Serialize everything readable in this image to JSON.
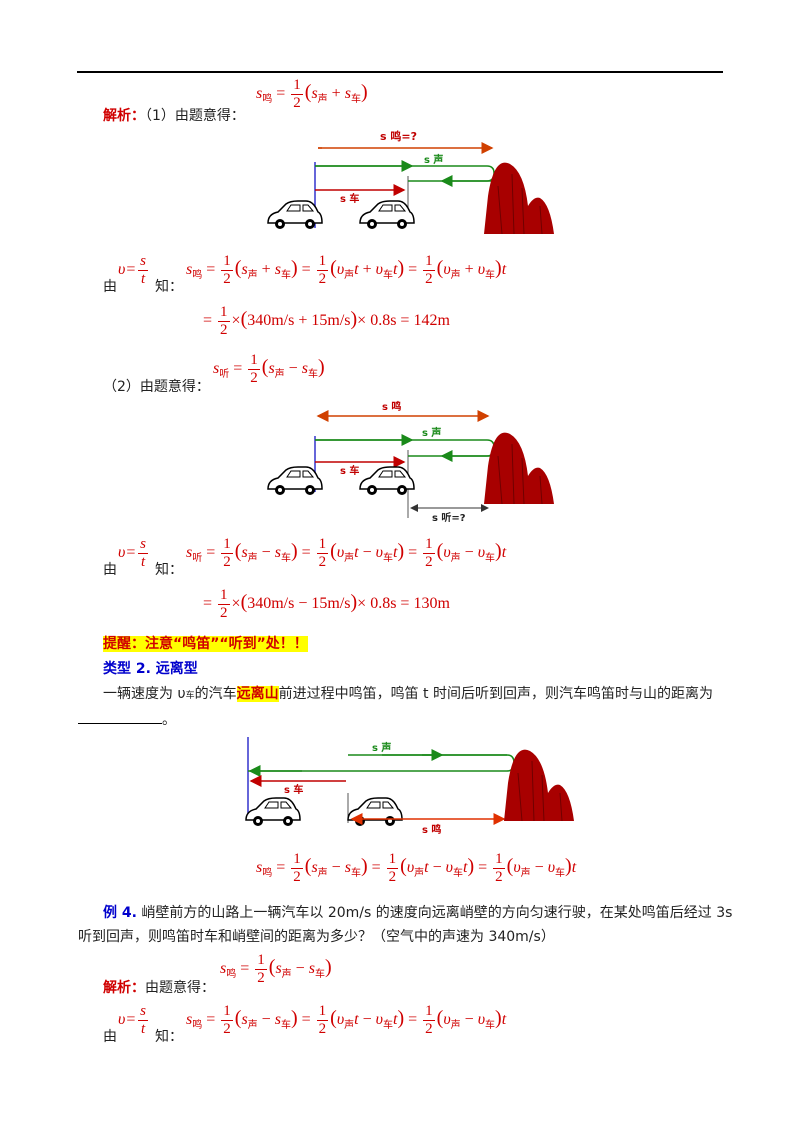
{
  "header_rule": true,
  "sol1": {
    "label": "解析：",
    "part": "（1）由题意得：",
    "eq_lhs": "s",
    "eq_lhs_sub": "鸣",
    "eq_rhs": "(s",
    "eq_rhs_sub1": "声",
    "eq_plus": "+ s",
    "eq_rhs_sub2": "车",
    "eq_close": ")"
  },
  "fig1": {
    "s_ming": "s 鸣=?",
    "s_sheng": "s 声",
    "s_che": "s 车"
  },
  "deriv1": {
    "intro": "由",
    "know": "知：",
    "v_eq": "υ=",
    "frac_num": "s",
    "frac_den": "t",
    "line1": "s鸣 = ½(s声 + s车) = ½(υ声t + υ车t) = ½(υ声 + υ车)t",
    "line2": "= ½ × (340m/s + 15m/s) × 0.8s = 142m"
  },
  "sol2": {
    "part": "（2）由题意得：",
    "eq": "s听 = ½(s声 − s车)"
  },
  "fig2": {
    "s_ming": "s 鸣",
    "s_sheng": "s 声",
    "s_che": "s 车",
    "s_ting": "s 听=?"
  },
  "deriv2": {
    "intro": "由",
    "know": "知：",
    "v_eq": "υ=",
    "frac_num": "s",
    "frac_den": "t",
    "line1": "s听 = ½(s声 − s车) = ½(υ声t − υ车t) = ½(υ声 − υ车)t",
    "line2": "= ½ × (340m/s − 15m/s) × 0.8s = 130m"
  },
  "tip": "提醒：注意“鸣笛”“听到”处！！",
  "type2": {
    "heading": "类型 2. 远离型",
    "text_before": "一辆速度为 υ",
    "text_sub": "车",
    "text_mid": "的汽车",
    "highlight": "远离山",
    "text_after": "前进过程中鸣笛，鸣笛 t 时间后听到回声，则汽车鸣笛时与山的距离为",
    "blank_end": "。"
  },
  "fig3": {
    "s_sheng": "s 声",
    "s_che": "s 车",
    "s_ming": "s 鸣"
  },
  "type2_eq": "s鸣 = ½(s声 − s车) = ½(υ声t − υ车t) = ½(υ声 − υ车)t",
  "ex4": {
    "label": "例 4.",
    "text1": "峭壁前方的山路上一辆汽车以 20m/s 的速度向远离峭壁的方向匀速行驶，在某处鸣笛后经过 3s",
    "text2": "听到回声，则鸣笛时车和峭壁间的距离为多少？（空气中的声速为 340m/s）"
  },
  "sol4": {
    "label": "解析：",
    "part": "由题意得：",
    "eq": "s鸣 = ½(s声 − s车)",
    "intro": "由",
    "know": "知：",
    "v_eq": "υ=",
    "frac_num": "s",
    "frac_den": "t",
    "line1": "s鸣 = ½(s声 − s车) = ½(υ声t − υ车t) = ½(υ声 − υ车)t"
  }
}
